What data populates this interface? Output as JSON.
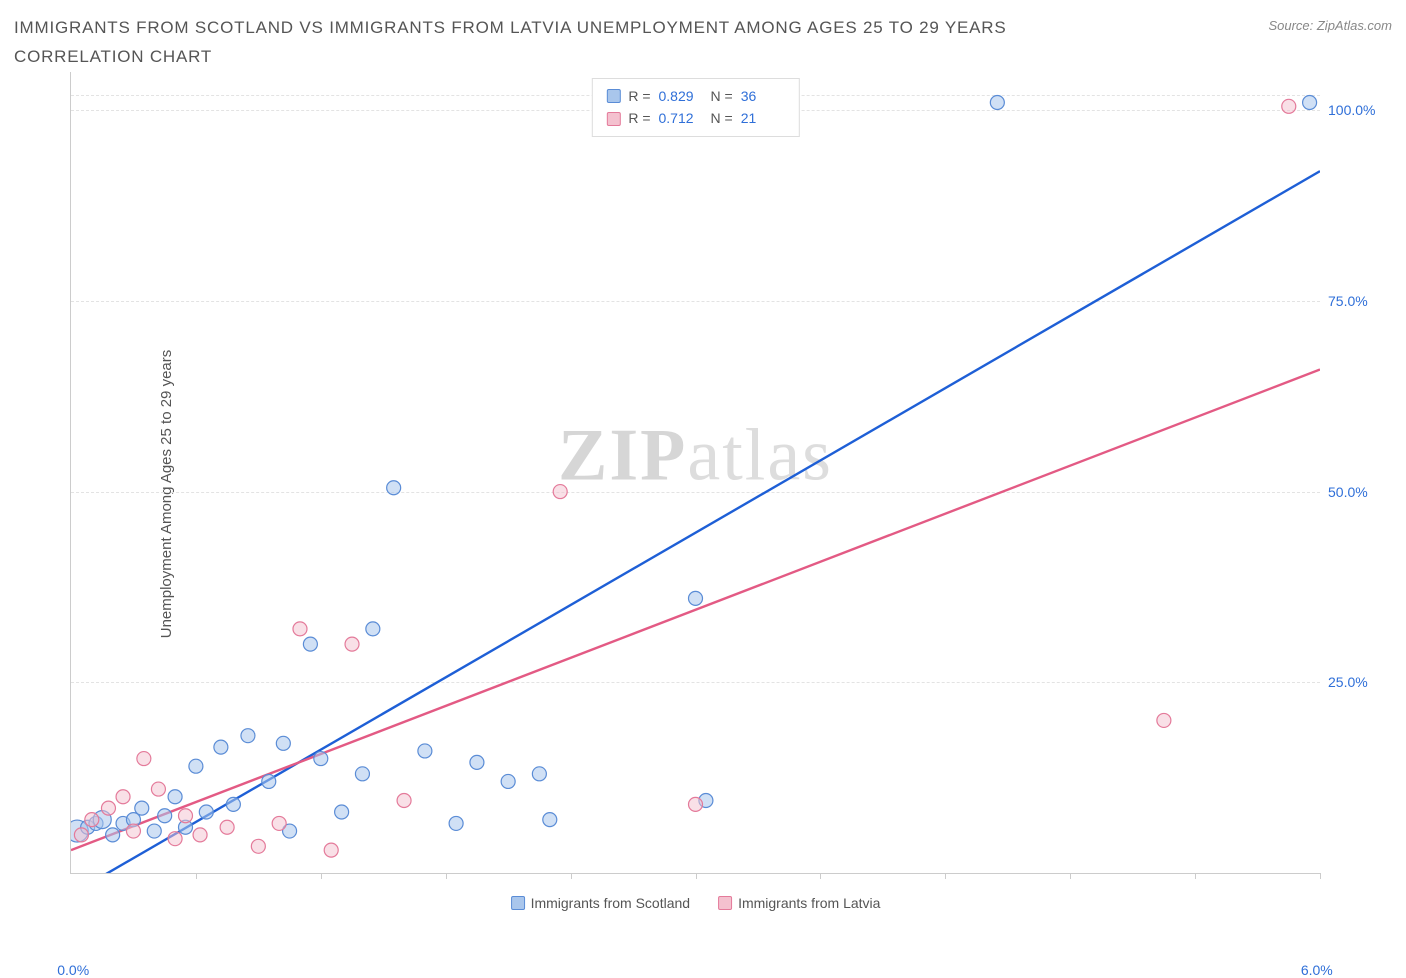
{
  "title": "IMMIGRANTS FROM SCOTLAND VS IMMIGRANTS FROM LATVIA UNEMPLOYMENT AMONG AGES 25 TO 29 YEARS CORRELATION CHART",
  "source_prefix": "Source: ",
  "source_name": "ZipAtlas.com",
  "y_axis_label": "Unemployment Among Ages 25 to 29 years",
  "watermark_bold": "ZIP",
  "watermark_light": "atlas",
  "chart": {
    "type": "scatter",
    "background_color": "#ffffff",
    "grid_color": "#e3e3e3",
    "axis_color": "#cccccc",
    "tick_label_color": "#2f6fd8",
    "xlim": [
      0.0,
      6.0
    ],
    "ylim": [
      0.0,
      105.0
    ],
    "x_tick_positions": [
      0.6,
      1.2,
      1.8,
      2.4,
      3.0,
      3.6,
      4.2,
      4.8,
      5.4,
      6.0
    ],
    "x_tick_labels": {
      "start": "0.0%",
      "end": "6.0%"
    },
    "y_ticks": [
      {
        "value": 25.0,
        "label": "25.0%"
      },
      {
        "value": 50.0,
        "label": "50.0%"
      },
      {
        "value": 75.0,
        "label": "75.0%"
      },
      {
        "value": 100.0,
        "label": "100.0%"
      }
    ],
    "marker_radius": 7,
    "marker_radius_small": 5,
    "marker_stroke_width": 1.2,
    "line_width": 2.4
  },
  "series": [
    {
      "key": "scotland",
      "label": "Immigrants from Scotland",
      "fill_color": "#a9c6ec",
      "stroke_color": "#5a8cd6",
      "line_color": "#1e5fd6",
      "fill_opacity": 0.55,
      "R": "0.829",
      "N": "36",
      "trend": {
        "x1": 0.05,
        "y1": -2.0,
        "x2": 6.0,
        "y2": 92.0
      },
      "points": [
        {
          "x": 0.03,
          "y": 5.5,
          "r": 11
        },
        {
          "x": 0.08,
          "y": 6.0
        },
        {
          "x": 0.12,
          "y": 6.5
        },
        {
          "x": 0.15,
          "y": 7.0,
          "r": 9
        },
        {
          "x": 0.2,
          "y": 5.0
        },
        {
          "x": 0.25,
          "y": 6.5
        },
        {
          "x": 0.3,
          "y": 7.0
        },
        {
          "x": 0.34,
          "y": 8.5
        },
        {
          "x": 0.4,
          "y": 5.5
        },
        {
          "x": 0.45,
          "y": 7.5
        },
        {
          "x": 0.5,
          "y": 10.0
        },
        {
          "x": 0.55,
          "y": 6.0
        },
        {
          "x": 0.6,
          "y": 14.0
        },
        {
          "x": 0.65,
          "y": 8.0
        },
        {
          "x": 0.72,
          "y": 16.5
        },
        {
          "x": 0.78,
          "y": 9.0
        },
        {
          "x": 0.85,
          "y": 18.0
        },
        {
          "x": 0.95,
          "y": 12.0
        },
        {
          "x": 1.02,
          "y": 17.0
        },
        {
          "x": 1.05,
          "y": 5.5
        },
        {
          "x": 1.15,
          "y": 30.0
        },
        {
          "x": 1.2,
          "y": 15.0
        },
        {
          "x": 1.3,
          "y": 8.0
        },
        {
          "x": 1.4,
          "y": 13.0
        },
        {
          "x": 1.45,
          "y": 32.0
        },
        {
          "x": 1.55,
          "y": 50.5
        },
        {
          "x": 1.7,
          "y": 16.0
        },
        {
          "x": 1.85,
          "y": 6.5
        },
        {
          "x": 1.95,
          "y": 14.5
        },
        {
          "x": 2.1,
          "y": 12.0
        },
        {
          "x": 2.25,
          "y": 13.0
        },
        {
          "x": 2.3,
          "y": 7.0
        },
        {
          "x": 3.0,
          "y": 36.0
        },
        {
          "x": 3.05,
          "y": 9.5
        },
        {
          "x": 4.45,
          "y": 101.0
        },
        {
          "x": 5.95,
          "y": 101.0
        }
      ]
    },
    {
      "key": "latvia",
      "label": "Immigrants from Latvia",
      "fill_color": "#f4c1cf",
      "stroke_color": "#e47a9a",
      "line_color": "#e35a84",
      "fill_opacity": 0.5,
      "R": "0.712",
      "N": "21",
      "trend": {
        "x1": 0.0,
        "y1": 3.0,
        "x2": 6.0,
        "y2": 66.0
      },
      "points": [
        {
          "x": 0.05,
          "y": 5.0
        },
        {
          "x": 0.1,
          "y": 7.0
        },
        {
          "x": 0.18,
          "y": 8.5
        },
        {
          "x": 0.25,
          "y": 10.0
        },
        {
          "x": 0.3,
          "y": 5.5
        },
        {
          "x": 0.35,
          "y": 15.0
        },
        {
          "x": 0.42,
          "y": 11.0
        },
        {
          "x": 0.5,
          "y": 4.5
        },
        {
          "x": 0.55,
          "y": 7.5
        },
        {
          "x": 0.62,
          "y": 5.0
        },
        {
          "x": 0.75,
          "y": 6.0
        },
        {
          "x": 0.9,
          "y": 3.5
        },
        {
          "x": 1.0,
          "y": 6.5
        },
        {
          "x": 1.1,
          "y": 32.0
        },
        {
          "x": 1.25,
          "y": 3.0
        },
        {
          "x": 1.35,
          "y": 30.0
        },
        {
          "x": 1.6,
          "y": 9.5
        },
        {
          "x": 2.35,
          "y": 50.0
        },
        {
          "x": 3.0,
          "y": 9.0
        },
        {
          "x": 5.25,
          "y": 20.0
        },
        {
          "x": 5.85,
          "y": 100.5
        }
      ]
    }
  ],
  "stats_labels": {
    "R": "R =",
    "N": "N ="
  },
  "bottom_legend_order": [
    "scotland",
    "latvia"
  ]
}
